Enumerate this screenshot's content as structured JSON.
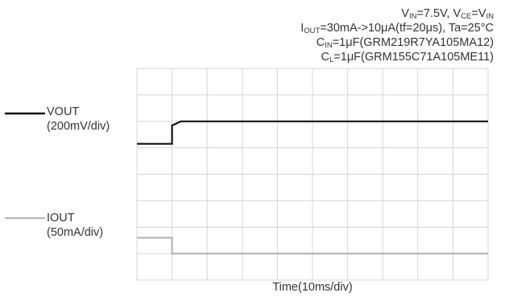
{
  "conditions": {
    "line1": {
      "v_in_sym": "V",
      "v_in_sub": "IN",
      "v_in_val": "=7.5V, ",
      "v_ce_sym": "V",
      "v_ce_sub": "CE",
      "v_ce_eq": "=V",
      "v_ce_sub2": "IN"
    },
    "line2": {
      "sym": "I",
      "sub": "OUT",
      "text": "=30mA->10μA(tf=20μs),  Ta=25°C"
    },
    "line3": {
      "sym": "C",
      "sub": "IN",
      "text": "=1μF(GRM219R7YA105MA12)"
    },
    "line4": {
      "sym": "C",
      "sub": "L",
      "text": "=1μF(GRM155C71A105ME11)"
    }
  },
  "legend": {
    "vout_name": "VOUT",
    "vout_scale": "(200mV/div)",
    "iout_name": "IOUT",
    "iout_scale": "(50mA/div)"
  },
  "colors": {
    "vout": "#111111",
    "iout": "#b5b5b5",
    "grid": "#d4d4d4"
  },
  "chart_data": {
    "type": "line",
    "title": "",
    "xlabel": "Time(10ms/div)",
    "ylabel": "",
    "grid": true,
    "x_divisions": 10,
    "y_divisions": 8,
    "xlim_div": [
      0,
      10
    ],
    "ylim_div": [
      0,
      8
    ],
    "series": [
      {
        "name": "VOUT",
        "scale": "200mV/div",
        "x_div": [
          0,
          1.0,
          1.0,
          1.1,
          1.25,
          1.5,
          10
        ],
        "y_div": [
          5.15,
          5.15,
          5.85,
          5.9,
          6.0,
          6.0,
          6.0
        ]
      },
      {
        "name": "IOUT",
        "scale": "50mA/div",
        "x_div": [
          0,
          1.0,
          1.0,
          10
        ],
        "y_div": [
          1.6,
          1.6,
          1.0,
          1.0
        ]
      }
    ]
  }
}
